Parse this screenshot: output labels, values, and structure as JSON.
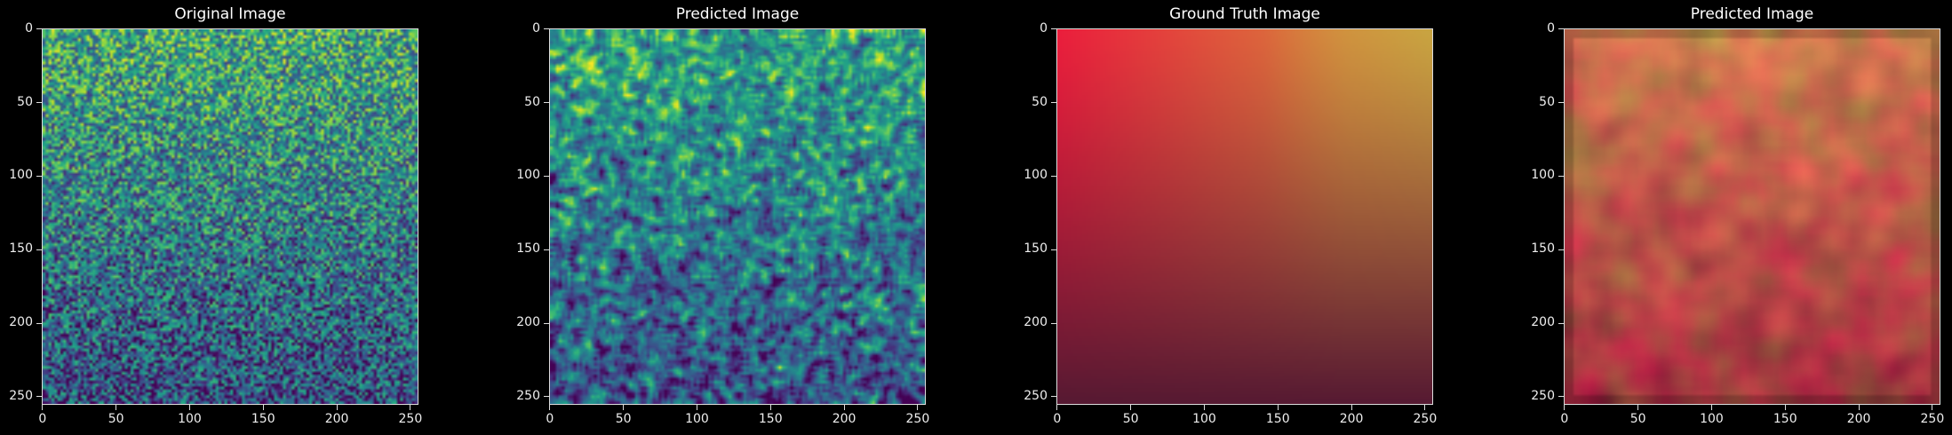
{
  "figure": {
    "panels": [
      {
        "title": "Original Image",
        "kind": "noise",
        "colormap": "viridis"
      },
      {
        "title": "Predicted Image",
        "kind": "noise-smooth",
        "colormap": "viridis"
      },
      {
        "title": "Ground Truth Image",
        "kind": "gradient",
        "colormap": "rgb"
      },
      {
        "title": "Predicted Image",
        "kind": "blotch",
        "colormap": "rgb"
      }
    ],
    "axes": {
      "x_ticks": [
        "0",
        "50",
        "100",
        "150",
        "200",
        "250"
      ],
      "y_ticks": [
        "0",
        "50",
        "100",
        "150",
        "200",
        "250"
      ],
      "range": [
        0,
        256
      ]
    }
  }
}
